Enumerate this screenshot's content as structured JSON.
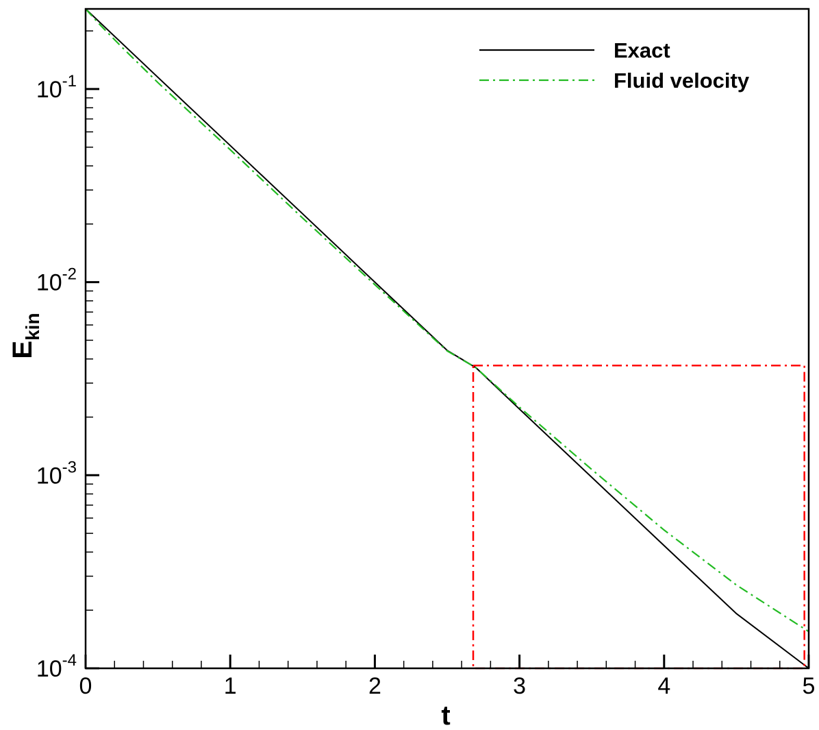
{
  "chart_data": {
    "type": "line",
    "xlabel": "t",
    "ylabel_main": "E",
    "ylabel_sub": "kin",
    "xscale": "linear",
    "yscale": "log",
    "xlim": [
      0,
      5
    ],
    "ylim": [
      0.0001,
      0.26
    ],
    "x_ticks": [
      {
        "value": 0,
        "label": "0"
      },
      {
        "value": 1,
        "label": "1"
      },
      {
        "value": 2,
        "label": "2"
      },
      {
        "value": 3,
        "label": "3"
      },
      {
        "value": 4,
        "label": "4"
      },
      {
        "value": 5,
        "label": "5"
      }
    ],
    "y_ticks": [
      {
        "value": 0.1,
        "base": "10",
        "exp": "-1"
      },
      {
        "value": 0.01,
        "base": "10",
        "exp": "-2"
      },
      {
        "value": 0.001,
        "base": "10",
        "exp": "-3"
      },
      {
        "value": 0.0001,
        "base": "10",
        "exp": "-4"
      }
    ],
    "grid": false,
    "legend_position": "top-right",
    "series": [
      {
        "name": "Exact",
        "color": "#000000",
        "style": "solid",
        "x": [
          0,
          0.5,
          1,
          1.5,
          2,
          2.5,
          2.7,
          3,
          3.5,
          4,
          4.5,
          5
        ],
        "y": [
          0.26,
          0.115,
          0.051,
          0.0226,
          0.01,
          0.00443,
          0.0036,
          0.0022,
          0.000975,
          0.000432,
          0.000192,
          0.0001
        ]
      },
      {
        "name": "Fluid velocity",
        "color": "#22bb22",
        "style": "dash-dot",
        "x": [
          0,
          0.1,
          0.25,
          0.5,
          1,
          1.5,
          2,
          2.5,
          2.7,
          3,
          3.5,
          4,
          4.5,
          5
        ],
        "y": [
          0.26,
          0.215,
          0.165,
          0.108,
          0.0485,
          0.0215,
          0.0097,
          0.0044,
          0.0036,
          0.00225,
          0.00107,
          0.00052,
          0.00027,
          0.000155
        ]
      }
    ],
    "annotations": [
      {
        "type": "rect",
        "color": "#ff0000",
        "style": "dash-dot",
        "x": [
          2.68,
          4.97
        ],
        "y": [
          0.0001,
          0.0037
        ]
      }
    ]
  }
}
